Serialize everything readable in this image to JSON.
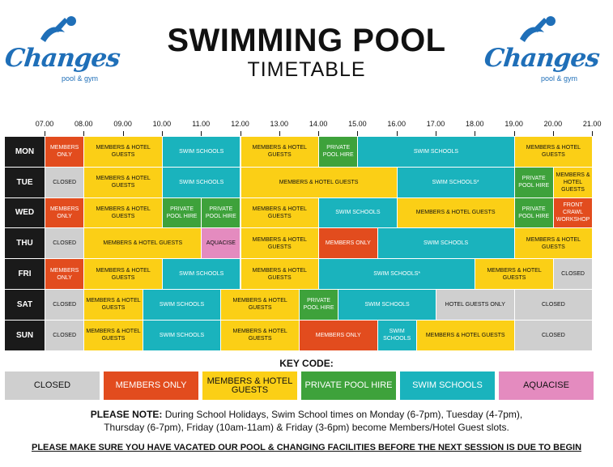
{
  "header": {
    "title": "SWIMMING POOL",
    "subtitle": "TIMETABLE",
    "logo_text": "Changes",
    "logo_sub": "pool & gym"
  },
  "colors": {
    "closed": "#cfcfcf",
    "members_only": "#e24c1e",
    "members_guests": "#fbcf16",
    "private_hire": "#3ea23b",
    "swim_schools": "#1ab3bd",
    "aquacise": "#e48bbf",
    "day_label": "#1a1a1a"
  },
  "times": [
    "07.00",
    "08.00",
    "09.00",
    "10.00",
    "11.00",
    "12.00",
    "13.00",
    "14.00",
    "15.00",
    "16.00",
    "17.00",
    "18.00",
    "19.00",
    "20.00",
    "21.00"
  ],
  "schedule": [
    {
      "day": "MON",
      "sessions": [
        {
          "start": 7,
          "end": 8,
          "type": "members_only",
          "label": "MEMBERS ONLY"
        },
        {
          "start": 8,
          "end": 10,
          "type": "members_guests",
          "label": "MEMBERS & HOTEL GUESTS"
        },
        {
          "start": 10,
          "end": 12,
          "type": "swim_schools",
          "label": "SWIM SCHOOLS"
        },
        {
          "start": 12,
          "end": 14,
          "type": "members_guests",
          "label": "MEMBERS & HOTEL GUESTS"
        },
        {
          "start": 14,
          "end": 15,
          "type": "private_hire",
          "label": "PRIVATE POOL HIRE"
        },
        {
          "start": 15,
          "end": 19,
          "type": "swim_schools",
          "label": "SWIM SCHOOLS"
        },
        {
          "start": 19,
          "end": 21,
          "type": "members_guests",
          "label": "MEMBERS & HOTEL GUESTS"
        }
      ]
    },
    {
      "day": "TUE",
      "sessions": [
        {
          "start": 7,
          "end": 8,
          "type": "closed",
          "label": "CLOSED"
        },
        {
          "start": 8,
          "end": 10,
          "type": "members_guests",
          "label": "MEMBERS & HOTEL GUESTS"
        },
        {
          "start": 10,
          "end": 12,
          "type": "swim_schools",
          "label": "SWIM SCHOOLS"
        },
        {
          "start": 12,
          "end": 16,
          "type": "members_guests",
          "label": "MEMBERS & HOTEL GUESTS"
        },
        {
          "start": 16,
          "end": 19,
          "type": "swim_schools",
          "label": "SWIM SCHOOLS*"
        },
        {
          "start": 19,
          "end": 20,
          "type": "private_hire",
          "label": "PRIVATE POOL HIRE"
        },
        {
          "start": 20,
          "end": 21,
          "type": "members_guests",
          "label": "MEMBERS & HOTEL GUESTS"
        }
      ]
    },
    {
      "day": "WED",
      "sessions": [
        {
          "start": 7,
          "end": 8,
          "type": "members_only",
          "label": "MEMBERS ONLY"
        },
        {
          "start": 8,
          "end": 10,
          "type": "members_guests",
          "label": "MEMBERS & HOTEL GUESTS"
        },
        {
          "start": 10,
          "end": 11,
          "type": "private_hire",
          "label": "PRIVATE POOL HIRE"
        },
        {
          "start": 11,
          "end": 12,
          "type": "private_hire",
          "label": "PRIVATE POOL HIRE"
        },
        {
          "start": 12,
          "end": 14,
          "type": "members_guests",
          "label": "MEMBERS & HOTEL GUESTS"
        },
        {
          "start": 14,
          "end": 16,
          "type": "swim_schools",
          "label": "SWIM SCHOOLS"
        },
        {
          "start": 16,
          "end": 19,
          "type": "members_guests",
          "label": "MEMBERS & HOTEL GUESTS"
        },
        {
          "start": 19,
          "end": 20,
          "type": "private_hire",
          "label": "PRIVATE POOL HIRE"
        },
        {
          "start": 20,
          "end": 21,
          "type": "members_only",
          "label": "FRONT CRAWL WORKSHOP"
        }
      ]
    },
    {
      "day": "THU",
      "sessions": [
        {
          "start": 7,
          "end": 8,
          "type": "closed",
          "label": "CLOSED"
        },
        {
          "start": 8,
          "end": 11,
          "type": "members_guests",
          "label": "MEMBERS & HOTEL GUESTS"
        },
        {
          "start": 11,
          "end": 12,
          "type": "aquacise",
          "label": "AQUACISE"
        },
        {
          "start": 12,
          "end": 14,
          "type": "members_guests",
          "label": "MEMBERS & HOTEL GUESTS"
        },
        {
          "start": 14,
          "end": 15.5,
          "type": "members_only",
          "label": "MEMBERS ONLY"
        },
        {
          "start": 15.5,
          "end": 19,
          "type": "swim_schools",
          "label": "SWIM SCHOOLS"
        },
        {
          "start": 19,
          "end": 21,
          "type": "members_guests",
          "label": "MEMBERS & HOTEL GUESTS"
        }
      ]
    },
    {
      "day": "FRI",
      "sessions": [
        {
          "start": 7,
          "end": 8,
          "type": "members_only",
          "label": "MEMBERS ONLY"
        },
        {
          "start": 8,
          "end": 10,
          "type": "members_guests",
          "label": "MEMBERS & HOTEL GUESTS"
        },
        {
          "start": 10,
          "end": 12,
          "type": "swim_schools",
          "label": "SWIM SCHOOLS"
        },
        {
          "start": 12,
          "end": 14,
          "type": "members_guests",
          "label": "MEMBERS & HOTEL GUESTS"
        },
        {
          "start": 14,
          "end": 18,
          "type": "swim_schools",
          "label": "SWIM SCHOOLS*"
        },
        {
          "start": 18,
          "end": 20,
          "type": "members_guests",
          "label": "MEMBERS & HOTEL GUESTS"
        },
        {
          "start": 20,
          "end": 21,
          "type": "closed",
          "label": "CLOSED"
        }
      ]
    },
    {
      "day": "SAT",
      "sessions": [
        {
          "start": 7,
          "end": 8,
          "type": "closed",
          "label": "CLOSED"
        },
        {
          "start": 8,
          "end": 9.5,
          "type": "members_guests",
          "label": "MEMBERS & HOTEL GUESTS"
        },
        {
          "start": 9.5,
          "end": 11.5,
          "type": "swim_schools",
          "label": "SWIM SCHOOLS"
        },
        {
          "start": 11.5,
          "end": 13.5,
          "type": "members_guests",
          "label": "MEMBERS & HOTEL GUESTS"
        },
        {
          "start": 13.5,
          "end": 14.5,
          "type": "private_hire",
          "label": "PRIVATE POOL HIRE"
        },
        {
          "start": 14.5,
          "end": 17,
          "type": "swim_schools",
          "label": "SWIM SCHOOLS"
        },
        {
          "start": 17,
          "end": 19,
          "type": "closed",
          "label": "HOTEL GUESTS ONLY"
        },
        {
          "start": 19,
          "end": 21,
          "type": "closed",
          "label": "CLOSED"
        }
      ]
    },
    {
      "day": "SUN",
      "sessions": [
        {
          "start": 7,
          "end": 8,
          "type": "closed",
          "label": "CLOSED"
        },
        {
          "start": 8,
          "end": 9.5,
          "type": "members_guests",
          "label": "MEMBERS & HOTEL GUESTS"
        },
        {
          "start": 9.5,
          "end": 11.5,
          "type": "swim_schools",
          "label": "SWIM SCHOOLS"
        },
        {
          "start": 11.5,
          "end": 13.5,
          "type": "members_guests",
          "label": "MEMBERS & HOTEL GUESTS"
        },
        {
          "start": 13.5,
          "end": 15.5,
          "type": "members_only",
          "label": "MEMBERS ONLY"
        },
        {
          "start": 15.5,
          "end": 16.5,
          "type": "swim_schools",
          "label": "SWIM SCHOOLS"
        },
        {
          "start": 16.5,
          "end": 19,
          "type": "members_guests",
          "label": "MEMBERS & HOTEL GUESTS"
        },
        {
          "start": 19,
          "end": 21,
          "type": "closed",
          "label": "CLOSED"
        }
      ]
    }
  ],
  "key": {
    "title": "KEY CODE:",
    "items": [
      {
        "type": "closed",
        "label": "CLOSED"
      },
      {
        "type": "members_only",
        "label": "MEMBERS ONLY"
      },
      {
        "type": "members_guests",
        "label": "MEMBERS & HOTEL GUESTS"
      },
      {
        "type": "private_hire",
        "label": "PRIVATE POOL HIRE"
      },
      {
        "type": "swim_schools",
        "label": "SWIM SCHOOLS"
      },
      {
        "type": "aquacise",
        "label": "AQUACISE"
      }
    ]
  },
  "note": {
    "lead": "PLEASE NOTE:",
    "line1": "During School Holidays, Swim School times on Monday (6-7pm), Tuesday (4-7pm),",
    "line2": "Thursday (6-7pm), Friday (10am-11am) & Friday (3-6pm) become Members/Hotel Guest slots."
  },
  "warning": "PLEASE MAKE SURE YOU HAVE VACATED OUR POOL & CHANGING FACILITIES BEFORE THE NEXT SESSION IS DUE TO BEGIN"
}
